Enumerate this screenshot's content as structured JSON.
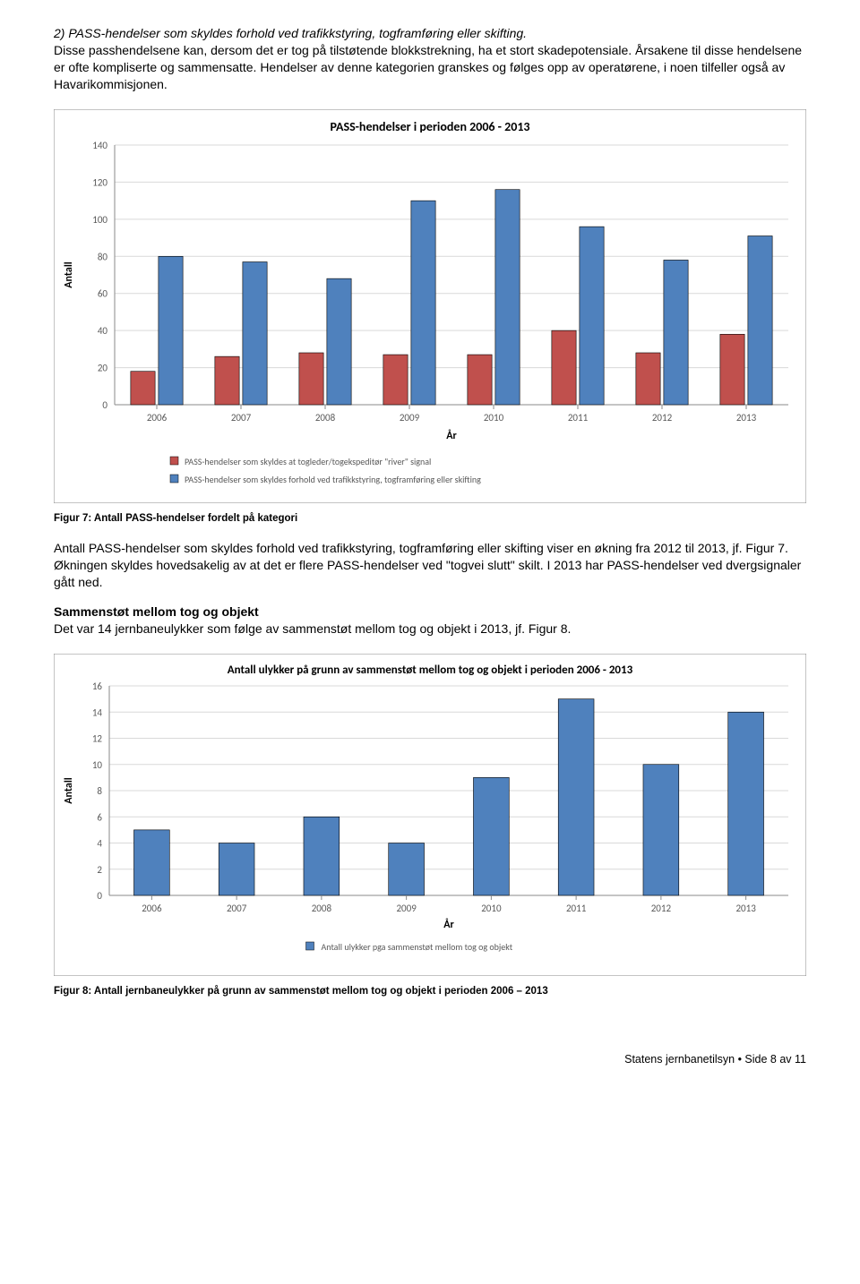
{
  "intro_italic": "2) PASS-hendelser som skyldes forhold ved trafikkstyring, togframføring eller skifting.",
  "intro_rest": "Disse passhendelsene kan, dersom det er tog på tilstøtende blokkstrekning, ha et stort skadepotensiale. Årsakene til disse hendelsene er ofte kompliserte og sammensatte. Hendelser av denne kategorien granskes og følges opp av operatørene, i noen tilfeller også av Havarikommisjonen.",
  "chart1": {
    "type": "bar",
    "title": "PASS-hendelser i perioden 2006 - 2013",
    "title_fontsize": 14,
    "title_color": "#000000",
    "background_color": "#ffffff",
    "plot_bg": "#ffffff",
    "grid_color": "#d9d9d9",
    "border_color": "#8a8a8a",
    "xlabel": "År",
    "ylabel": "Antall",
    "label_fontsize": 12,
    "tick_fontsize": 11,
    "tick_color": "#595959",
    "ylim": [
      0,
      140
    ],
    "ytick_step": 20,
    "categories": [
      "2006",
      "2007",
      "2008",
      "2009",
      "2010",
      "2011",
      "2012",
      "2013"
    ],
    "series": [
      {
        "name": "PASS-hendelser som skyldes at togleder/togekspeditør \"river\" signal",
        "color": "#c0504d",
        "border": "#000000",
        "values": [
          18,
          26,
          28,
          27,
          27,
          40,
          28,
          38
        ]
      },
      {
        "name": "PASS-hendelser som skyldes forhold ved trafikkstyring, togframføring eller skifting",
        "color": "#4f81bd",
        "border": "#000000",
        "values": [
          80,
          77,
          68,
          110,
          116,
          96,
          78,
          91
        ]
      }
    ],
    "legend_fontsize": 10,
    "legend_marker_size": 9,
    "bar_group_width": 0.62,
    "bar_gap": 0.04
  },
  "fig7_caption": "Figur 7: Antall PASS-hendelser fordelt på kategori",
  "mid_para": "Antall PASS-hendelser som skyldes forhold ved trafikkstyring, togframføring eller skifting viser en økning fra 2012 til 2013, jf. Figur 7. Økningen skyldes hovedsakelig av at det er flere PASS-hendelser ved \"togvei slutt\" skilt. I 2013 har PASS-hendelser ved dvergsignaler gått ned.",
  "section_heading": "Sammenstøt mellom tog og objekt",
  "section_text": "Det var 14 jernbaneulykker som følge av sammenstøt mellom tog og objekt i 2013, jf. Figur 8.",
  "chart2": {
    "type": "bar",
    "title": "Antall ulykker på grunn av sammenstøt mellom tog og objekt i perioden 2006 - 2013",
    "title_fontsize": 13,
    "title_color": "#000000",
    "background_color": "#ffffff",
    "plot_bg": "#ffffff",
    "grid_color": "#d9d9d9",
    "border_color": "#8a8a8a",
    "xlabel": "År",
    "ylabel": "Antall",
    "label_fontsize": 12,
    "tick_fontsize": 11,
    "tick_color": "#595959",
    "ylim": [
      0,
      16
    ],
    "ytick_step": 2,
    "categories": [
      "2006",
      "2007",
      "2008",
      "2009",
      "2010",
      "2011",
      "2012",
      "2013"
    ],
    "series": [
      {
        "name": "Antall ulykker pga sammenstøt mellom tog og objekt",
        "color": "#4f81bd",
        "border": "#000000",
        "values": [
          5,
          4,
          6,
          4,
          9,
          15,
          10,
          14
        ]
      }
    ],
    "legend_fontsize": 10,
    "legend_marker_size": 9,
    "bar_width": 0.42
  },
  "fig8_caption": "Figur 8: Antall jernbaneulykker på grunn av sammenstøt mellom tog og objekt i perioden 2006 – 2013",
  "footer": "Statens jernbanetilsyn • Side 8 av 11"
}
